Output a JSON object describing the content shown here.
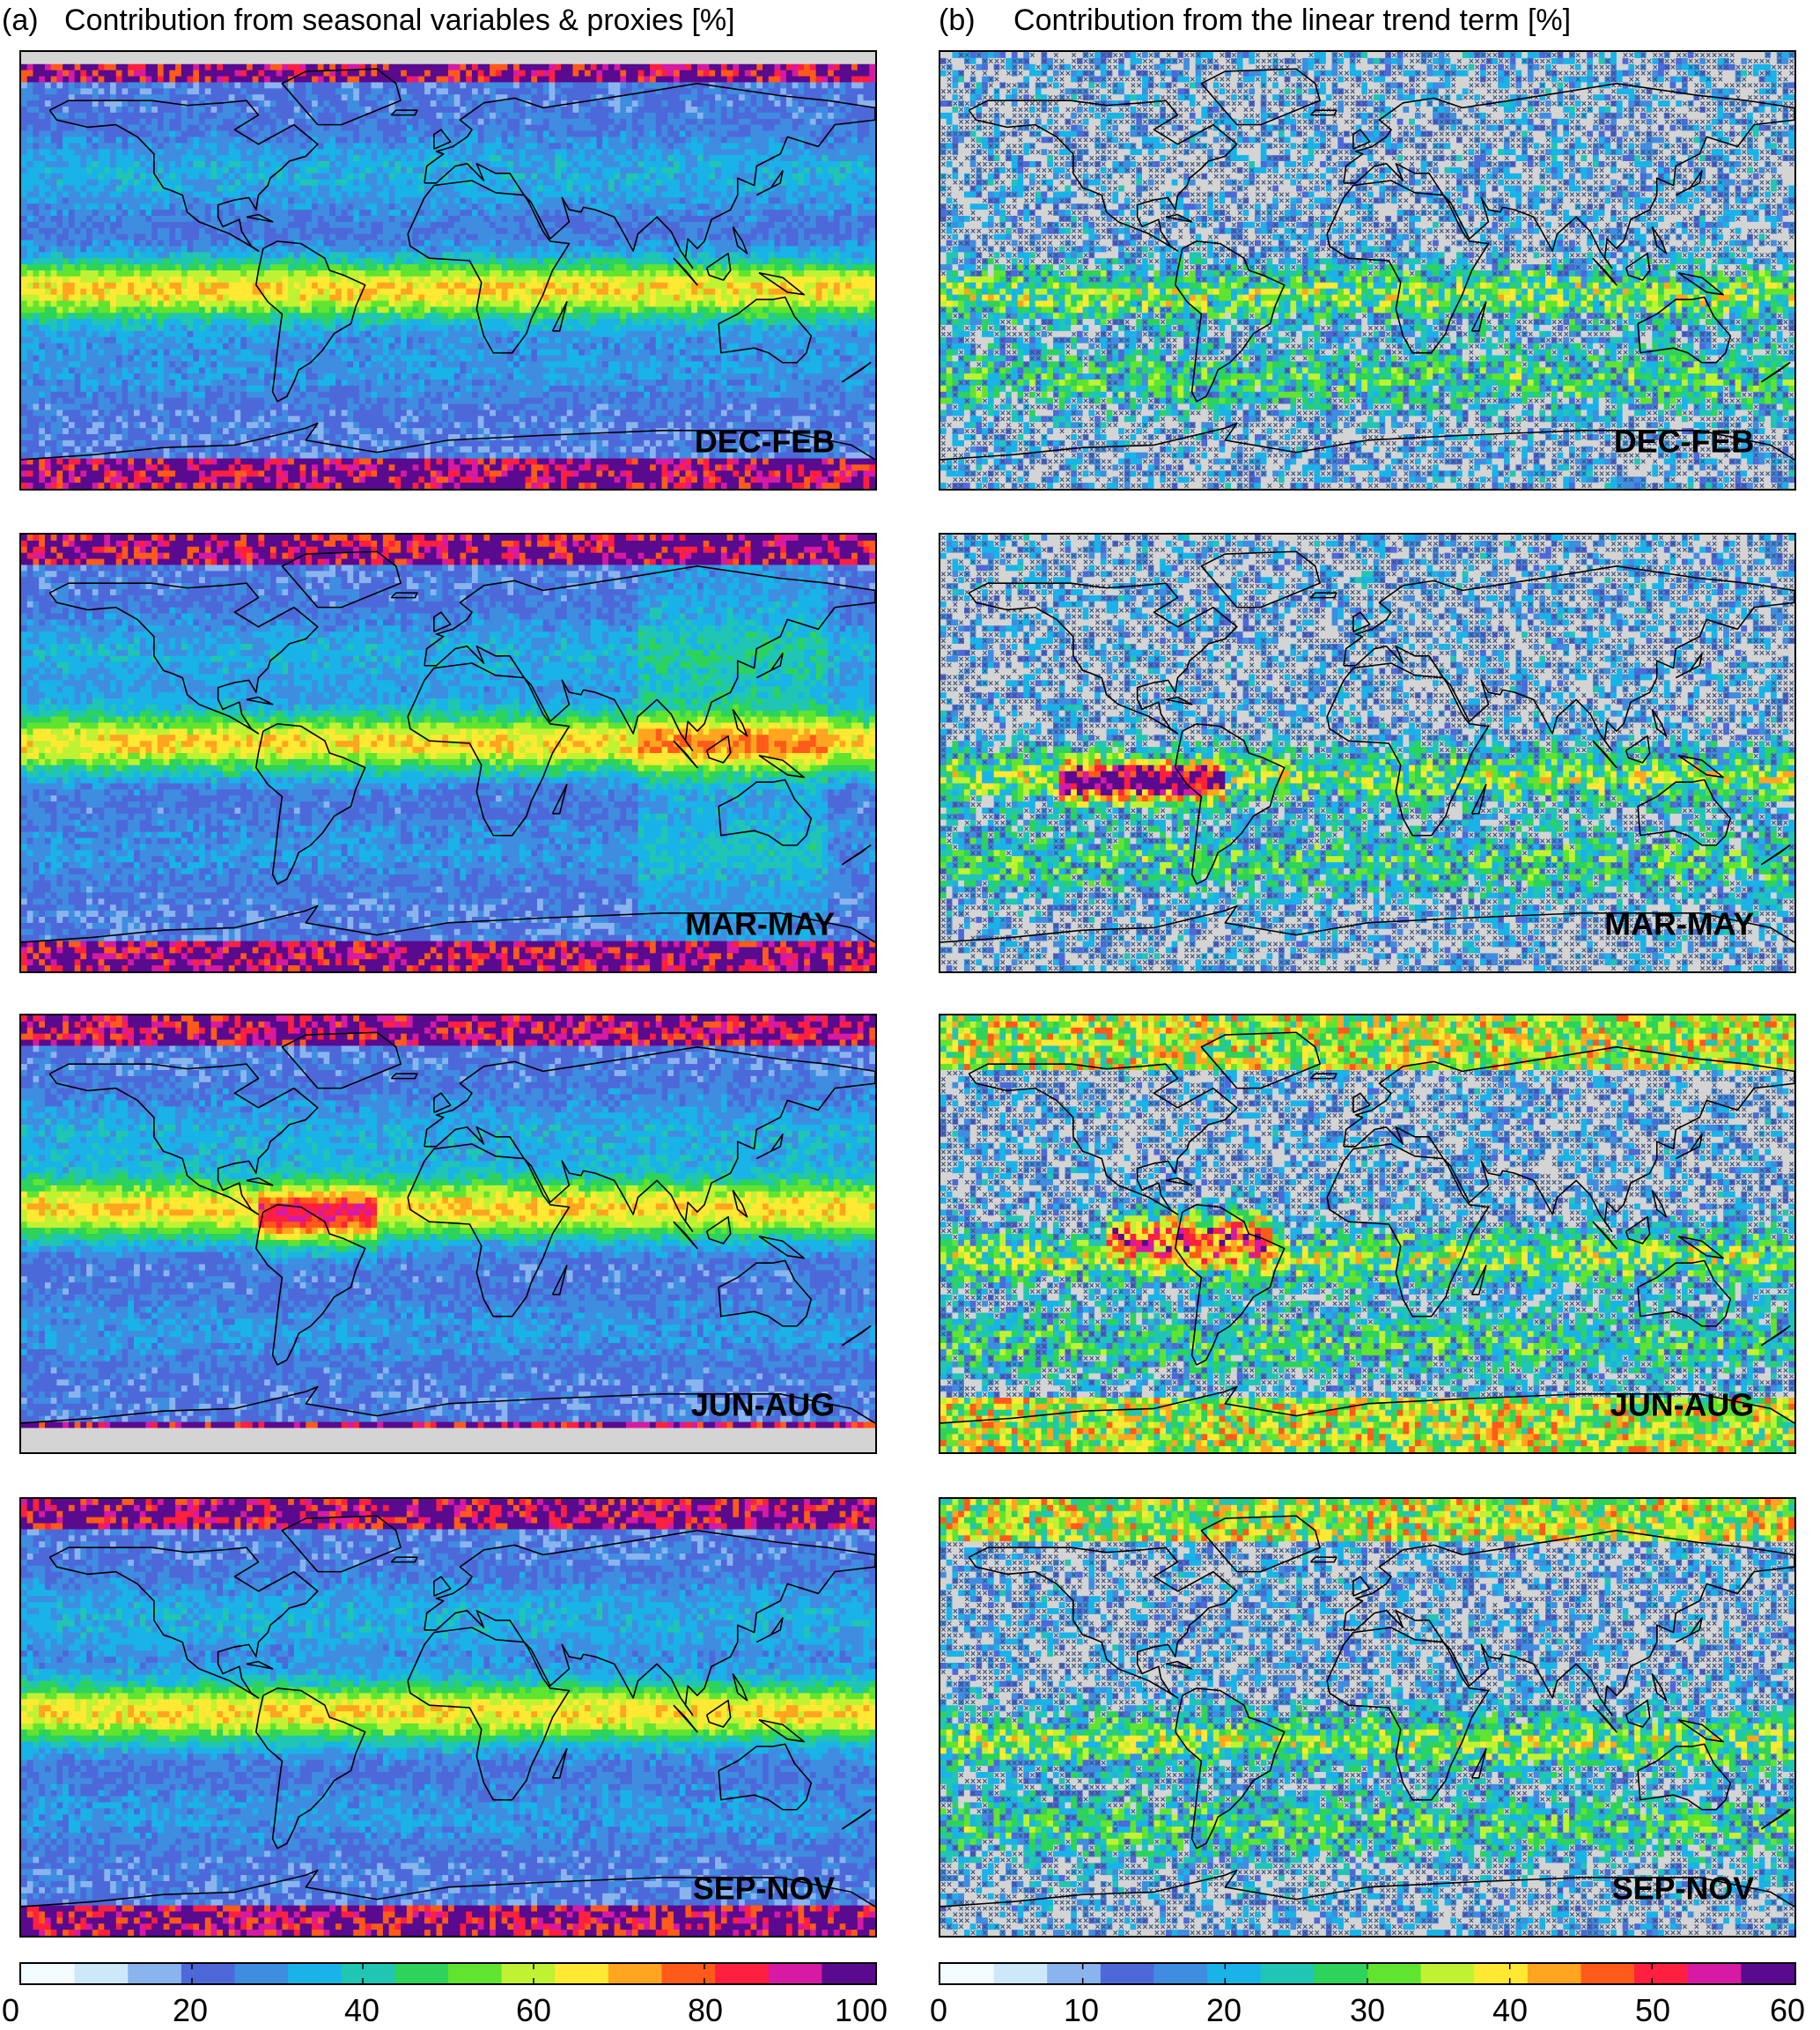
{
  "columns": [
    {
      "id": "a",
      "panel_label": "(a)",
      "title": "Contribution from seasonal variables & proxies [%]",
      "colorbar": {
        "min": 0,
        "max": 100,
        "ticks": [
          "0",
          "20",
          "40",
          "60",
          "80",
          "100"
        ]
      }
    },
    {
      "id": "b",
      "panel_label": "(b)",
      "title": "Contribution from the linear trend term [%]",
      "colorbar": {
        "min": 0,
        "max": 60,
        "ticks": [
          "0",
          "10",
          "20",
          "30",
          "40",
          "50",
          "60"
        ]
      }
    }
  ],
  "seasons": [
    "DEC-FEB",
    "MAR-MAY",
    "JUN-AUG",
    "SEP-NOV"
  ],
  "colors": {
    "colormap": [
      "#f2fbff",
      "#cde8f8",
      "#8ab4ee",
      "#4d69d9",
      "#3f8de0",
      "#19b3e8",
      "#20c6b3",
      "#2dd35a",
      "#61e430",
      "#bff233",
      "#ffe933",
      "#ffa51f",
      "#ff5a1a",
      "#ff1f3f",
      "#d61aa3",
      "#5a0a8e"
    ],
    "no_data": "#d4d4d4",
    "hatch": "#3c4f7a",
    "coastline": "#000000"
  }
}
